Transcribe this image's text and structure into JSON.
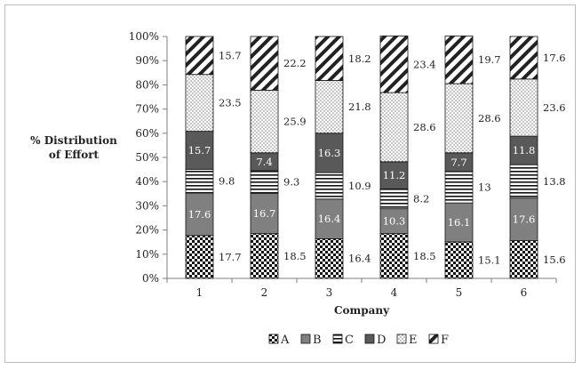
{
  "chart_data": {
    "type": "bar",
    "stacked": true,
    "percent_stacked": true,
    "categories": [
      "1",
      "2",
      "3",
      "4",
      "5",
      "6"
    ],
    "xlabel": "Company",
    "ylabel": "% Distribution of Effort",
    "ylabel_lines": [
      "% Distribution",
      "of Effort"
    ],
    "ylim": [
      0,
      100
    ],
    "yticks": [
      "0%",
      "10%",
      "20%",
      "30%",
      "40%",
      "50%",
      "60%",
      "70%",
      "80%",
      "90%",
      "100%"
    ],
    "legend_position": "bottom",
    "series": [
      {
        "name": "A",
        "pattern": "checker",
        "values": [
          17.7,
          18.5,
          16.4,
          18.5,
          15.1,
          15.6
        ]
      },
      {
        "name": "B",
        "pattern": "gray",
        "values": [
          17.6,
          16.7,
          16.4,
          10.3,
          16.1,
          17.6
        ]
      },
      {
        "name": "C",
        "pattern": "horizontal-lines",
        "values": [
          9.8,
          9.3,
          10.9,
          8.2,
          13,
          13.8
        ]
      },
      {
        "name": "D",
        "pattern": "dark-gray",
        "values": [
          15.7,
          7.4,
          16.3,
          11.2,
          7.7,
          11.8
        ]
      },
      {
        "name": "E",
        "pattern": "dots",
        "values": [
          23.5,
          25.9,
          21.8,
          28.6,
          28.6,
          23.6
        ]
      },
      {
        "name": "F",
        "pattern": "diagonal",
        "values": [
          15.7,
          22.2,
          18.2,
          23.4,
          19.7,
          17.6
        ]
      }
    ],
    "label_text": [
      [
        "17.7",
        "18.5",
        "16.4",
        "18.5",
        "15.1",
        "15.6"
      ],
      [
        "17.6",
        "16.7",
        "16.4",
        "10.3",
        "16.1",
        "17.6"
      ],
      [
        "9.8",
        "9.3",
        "10.9",
        "8.2",
        "13",
        "13.8"
      ],
      [
        "15.7",
        "7.4",
        "16.3",
        "11.2",
        "7.7",
        "11.8"
      ],
      [
        "23.5",
        "25.9",
        "21.8",
        "28.6",
        "28.6",
        "23.6"
      ],
      [
        "15.7",
        "22.2",
        "18.2",
        "23.4",
        "19.7",
        "17.6"
      ]
    ],
    "label_inside": [
      [
        false,
        false,
        false,
        false,
        false,
        false
      ],
      [
        true,
        true,
        true,
        true,
        true,
        true
      ],
      [
        false,
        false,
        false,
        false,
        false,
        false
      ],
      [
        true,
        true,
        true,
        true,
        true,
        true
      ],
      [
        false,
        false,
        false,
        false,
        false,
        false
      ],
      [
        false,
        false,
        false,
        false,
        false,
        false
      ]
    ],
    "colors": {
      "axis": "#7f7f7f",
      "gray": "#808080",
      "dark": "#595959",
      "text": "#222222"
    }
  }
}
